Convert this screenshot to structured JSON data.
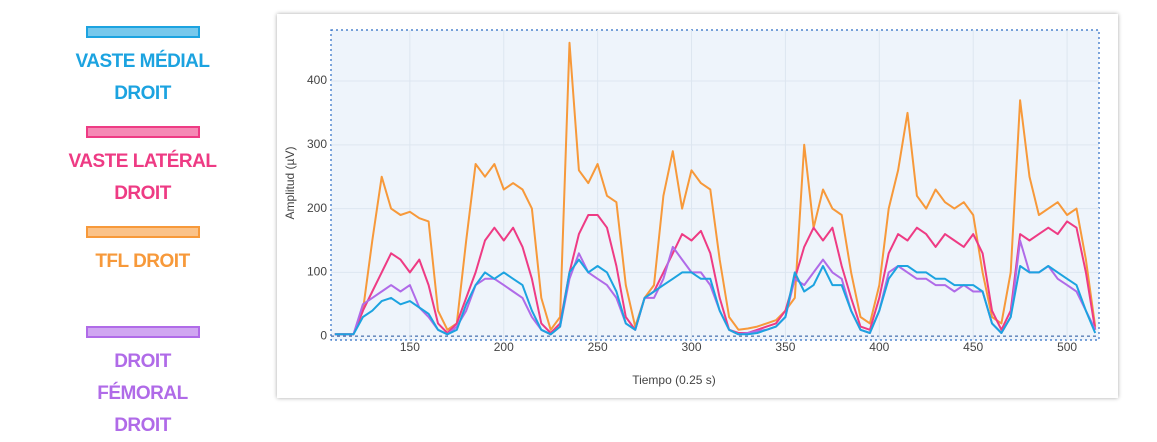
{
  "chart_data": {
    "type": "line",
    "x_label": "Tiempo (0.25 s)",
    "y_label": "Amplitud (µV)",
    "xlim": [
      108,
      517
    ],
    "ylim": [
      -6,
      480
    ],
    "xticks": [
      150,
      200,
      250,
      300,
      350,
      400,
      450,
      500
    ],
    "yticks": [
      0,
      100,
      200,
      300,
      400
    ],
    "grid": true,
    "legend": "left",
    "x": [
      110,
      115,
      120,
      125,
      130,
      135,
      140,
      145,
      150,
      155,
      160,
      165,
      170,
      175,
      180,
      185,
      190,
      195,
      200,
      205,
      210,
      215,
      220,
      225,
      230,
      235,
      240,
      245,
      250,
      255,
      260,
      265,
      270,
      275,
      280,
      285,
      290,
      295,
      300,
      305,
      310,
      315,
      320,
      325,
      330,
      335,
      340,
      345,
      350,
      355,
      360,
      365,
      370,
      375,
      380,
      385,
      390,
      395,
      400,
      405,
      410,
      415,
      420,
      425,
      430,
      435,
      440,
      445,
      450,
      455,
      460,
      465,
      470,
      475,
      480,
      485,
      490,
      495,
      500,
      505,
      510,
      515
    ],
    "series": [
      {
        "name": "VASTE MÉDIAL DROIT",
        "color": "#1ca3e0",
        "values": [
          3,
          3,
          3,
          30,
          40,
          55,
          60,
          50,
          55,
          45,
          35,
          10,
          3,
          10,
          50,
          80,
          100,
          90,
          100,
          90,
          80,
          40,
          10,
          3,
          15,
          100,
          120,
          100,
          110,
          100,
          70,
          20,
          10,
          60,
          70,
          80,
          90,
          100,
          100,
          90,
          90,
          40,
          10,
          3,
          3,
          5,
          10,
          15,
          30,
          100,
          70,
          80,
          110,
          80,
          80,
          40,
          10,
          5,
          40,
          90,
          110,
          110,
          100,
          100,
          90,
          90,
          80,
          80,
          80,
          70,
          20,
          5,
          30,
          110,
          100,
          100,
          110,
          100,
          90,
          80,
          40,
          5
        ]
      },
      {
        "name": "VASTE LATÉRAL DROIT",
        "color": "#ee3b84",
        "values": [
          3,
          3,
          3,
          40,
          70,
          100,
          130,
          120,
          100,
          120,
          80,
          20,
          5,
          20,
          60,
          100,
          150,
          170,
          150,
          170,
          140,
          90,
          20,
          5,
          20,
          100,
          160,
          190,
          190,
          170,
          110,
          30,
          10,
          60,
          70,
          100,
          130,
          160,
          150,
          165,
          130,
          60,
          10,
          5,
          5,
          10,
          15,
          20,
          40,
          90,
          140,
          170,
          150,
          170,
          110,
          60,
          15,
          10,
          60,
          130,
          160,
          150,
          170,
          160,
          140,
          160,
          150,
          140,
          160,
          130,
          40,
          10,
          40,
          160,
          150,
          160,
          170,
          160,
          180,
          170,
          100,
          10
        ]
      },
      {
        "name": "TFL DROIT",
        "color": "#f7993a",
        "values": [
          3,
          3,
          3,
          40,
          150,
          250,
          200,
          190,
          195,
          185,
          180,
          40,
          10,
          20,
          150,
          270,
          250,
          270,
          230,
          240,
          230,
          200,
          60,
          10,
          30,
          460,
          260,
          240,
          270,
          220,
          210,
          80,
          15,
          60,
          80,
          220,
          290,
          200,
          260,
          240,
          230,
          120,
          30,
          10,
          12,
          15,
          20,
          25,
          40,
          60,
          300,
          170,
          230,
          200,
          190,
          100,
          30,
          20,
          80,
          200,
          260,
          350,
          220,
          200,
          230,
          210,
          200,
          210,
          190,
          100,
          30,
          20,
          100,
          370,
          250,
          190,
          200,
          210,
          190,
          200,
          120,
          15
        ]
      },
      {
        "name": "DROIT FÉMORAL DROIT",
        "color": "#b06be8",
        "values": [
          3,
          3,
          3,
          50,
          60,
          70,
          80,
          70,
          80,
          45,
          30,
          10,
          3,
          15,
          40,
          80,
          90,
          90,
          80,
          70,
          60,
          30,
          10,
          3,
          15,
          90,
          130,
          100,
          90,
          80,
          60,
          20,
          10,
          60,
          60,
          90,
          140,
          120,
          100,
          100,
          80,
          40,
          10,
          3,
          5,
          8,
          10,
          15,
          30,
          90,
          80,
          100,
          120,
          100,
          90,
          40,
          10,
          5,
          40,
          100,
          110,
          100,
          90,
          90,
          80,
          80,
          70,
          80,
          70,
          70,
          20,
          5,
          30,
          150,
          100,
          100,
          110,
          90,
          80,
          70,
          40,
          10
        ]
      }
    ]
  }
}
